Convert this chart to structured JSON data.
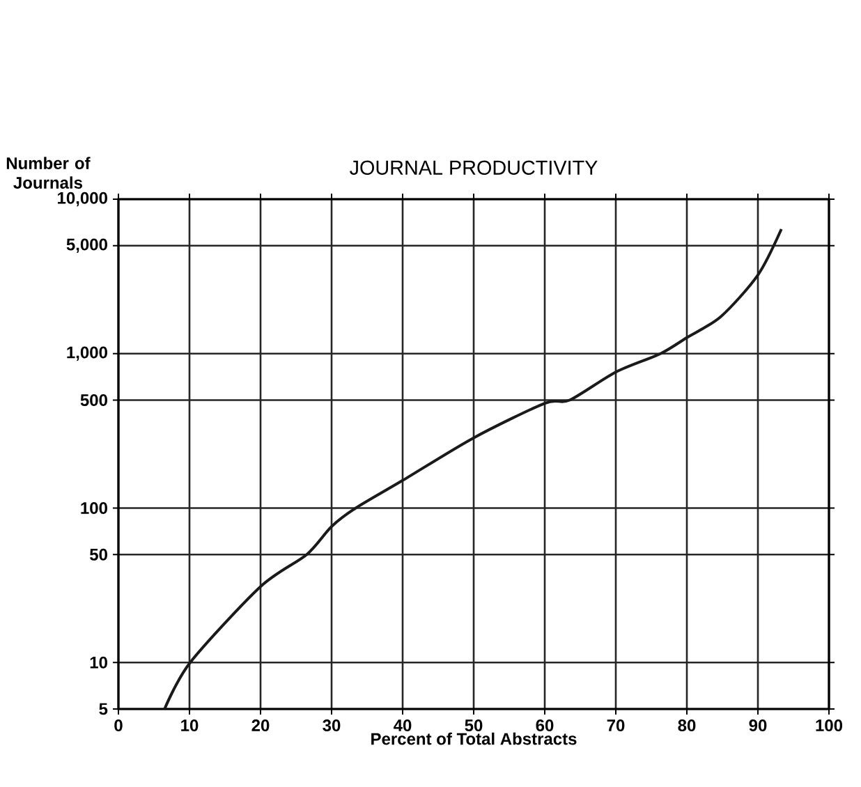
{
  "chart_data": {
    "type": "line",
    "title": "JOURNAL PRODUCTIVITY",
    "xlabel": "Percent of Total Abstracts",
    "ylabel": "Number of Journals",
    "x": [
      6.5,
      10.1,
      20,
      26.5,
      30,
      33.4,
      40,
      50,
      60,
      63.5,
      70,
      76.3,
      80,
      84.8,
      90,
      93.3
    ],
    "series": [
      {
        "color": "#1a1a1a",
        "values": [
          5,
          10,
          31,
          50,
          76,
          100,
          151,
          285,
          477,
          500,
          760,
          1000,
          1270,
          1740,
          3230,
          6400
        ]
      }
    ],
    "xlim": [
      0,
      100
    ],
    "ylim": [
      5,
      10000
    ],
    "log": "y",
    "grid": true,
    "marker": "none",
    "line_style": "solid",
    "xticks": [
      0,
      10,
      20,
      30,
      40,
      50,
      60,
      70,
      80,
      90,
      100
    ],
    "yticks": [
      5,
      10,
      50,
      100,
      500,
      {
        "value": 1000,
        "label": "1,000"
      },
      {
        "value": 5000,
        "label": "5,000"
      },
      {
        "value": 10000,
        "label": "10,000"
      }
    ]
  }
}
